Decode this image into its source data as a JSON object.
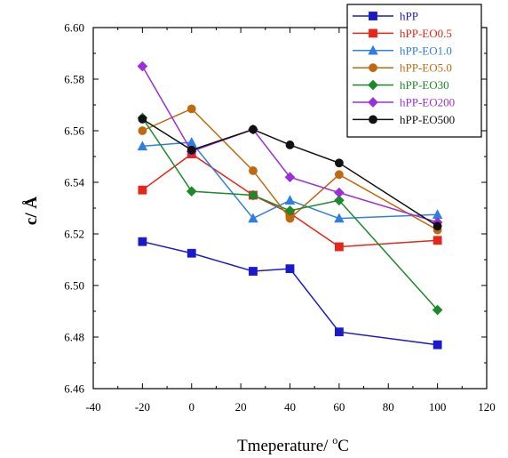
{
  "chart_data": {
    "type": "line",
    "xlabel": "Tmeperature/ ",
    "xlabel_sup": "o",
    "xlabel_unit": "C",
    "ylabel": "c/ Å",
    "xlim": [
      -40,
      120
    ],
    "ylim": [
      6.46,
      6.6
    ],
    "xticks": [
      -40,
      -20,
      0,
      20,
      40,
      60,
      80,
      100,
      120
    ],
    "yticks": [
      6.46,
      6.48,
      6.5,
      6.52,
      6.54,
      6.56,
      6.58,
      6.6
    ],
    "xtick_labels": [
      "-40",
      "-20",
      "0",
      "20",
      "40",
      "60",
      "80",
      "100",
      "120"
    ],
    "ytick_labels": [
      "6.46",
      "6.48",
      "6.50",
      "6.52",
      "6.54",
      "6.56",
      "6.58",
      "6.60"
    ],
    "grid": false,
    "legend_position": "top-right",
    "x": [
      -20,
      0,
      25,
      40,
      60,
      100
    ],
    "series": [
      {
        "name": "hPP",
        "color": "#1a1acc",
        "marker": "square",
        "values": [
          6.517,
          6.5125,
          6.5055,
          6.5065,
          6.482,
          6.477
        ]
      },
      {
        "name": "hPP-EO0.5",
        "color": "#e8251a",
        "marker": "square",
        "values": [
          6.537,
          6.551,
          6.535,
          6.528,
          6.515,
          6.5175
        ]
      },
      {
        "name": "hPP-EO1.0",
        "color": "#2f7fe0",
        "marker": "triangle",
        "values": [
          6.554,
          6.5555,
          6.526,
          6.533,
          6.526,
          6.5275
        ]
      },
      {
        "name": "hPP-EO5.0",
        "color": "#c06a10",
        "marker": "circle",
        "values": [
          6.56,
          6.5685,
          6.5445,
          6.526,
          6.543,
          6.5215
        ]
      },
      {
        "name": "hPP-EO30",
        "color": "#1a8a2a",
        "marker": "diamond",
        "values": [
          6.565,
          6.5365,
          6.535,
          6.529,
          6.533,
          6.4905
        ]
      },
      {
        "name": "hPP-EO200",
        "color": "#9b2fd8",
        "marker": "diamond",
        "values": [
          6.585,
          6.552,
          6.5605,
          6.542,
          6.536,
          6.5245
        ]
      },
      {
        "name": "hPP-EO500",
        "color": "#111111",
        "marker": "circle",
        "values": [
          6.5645,
          6.5525,
          6.5605,
          6.5545,
          6.5475,
          6.523
        ]
      }
    ]
  }
}
